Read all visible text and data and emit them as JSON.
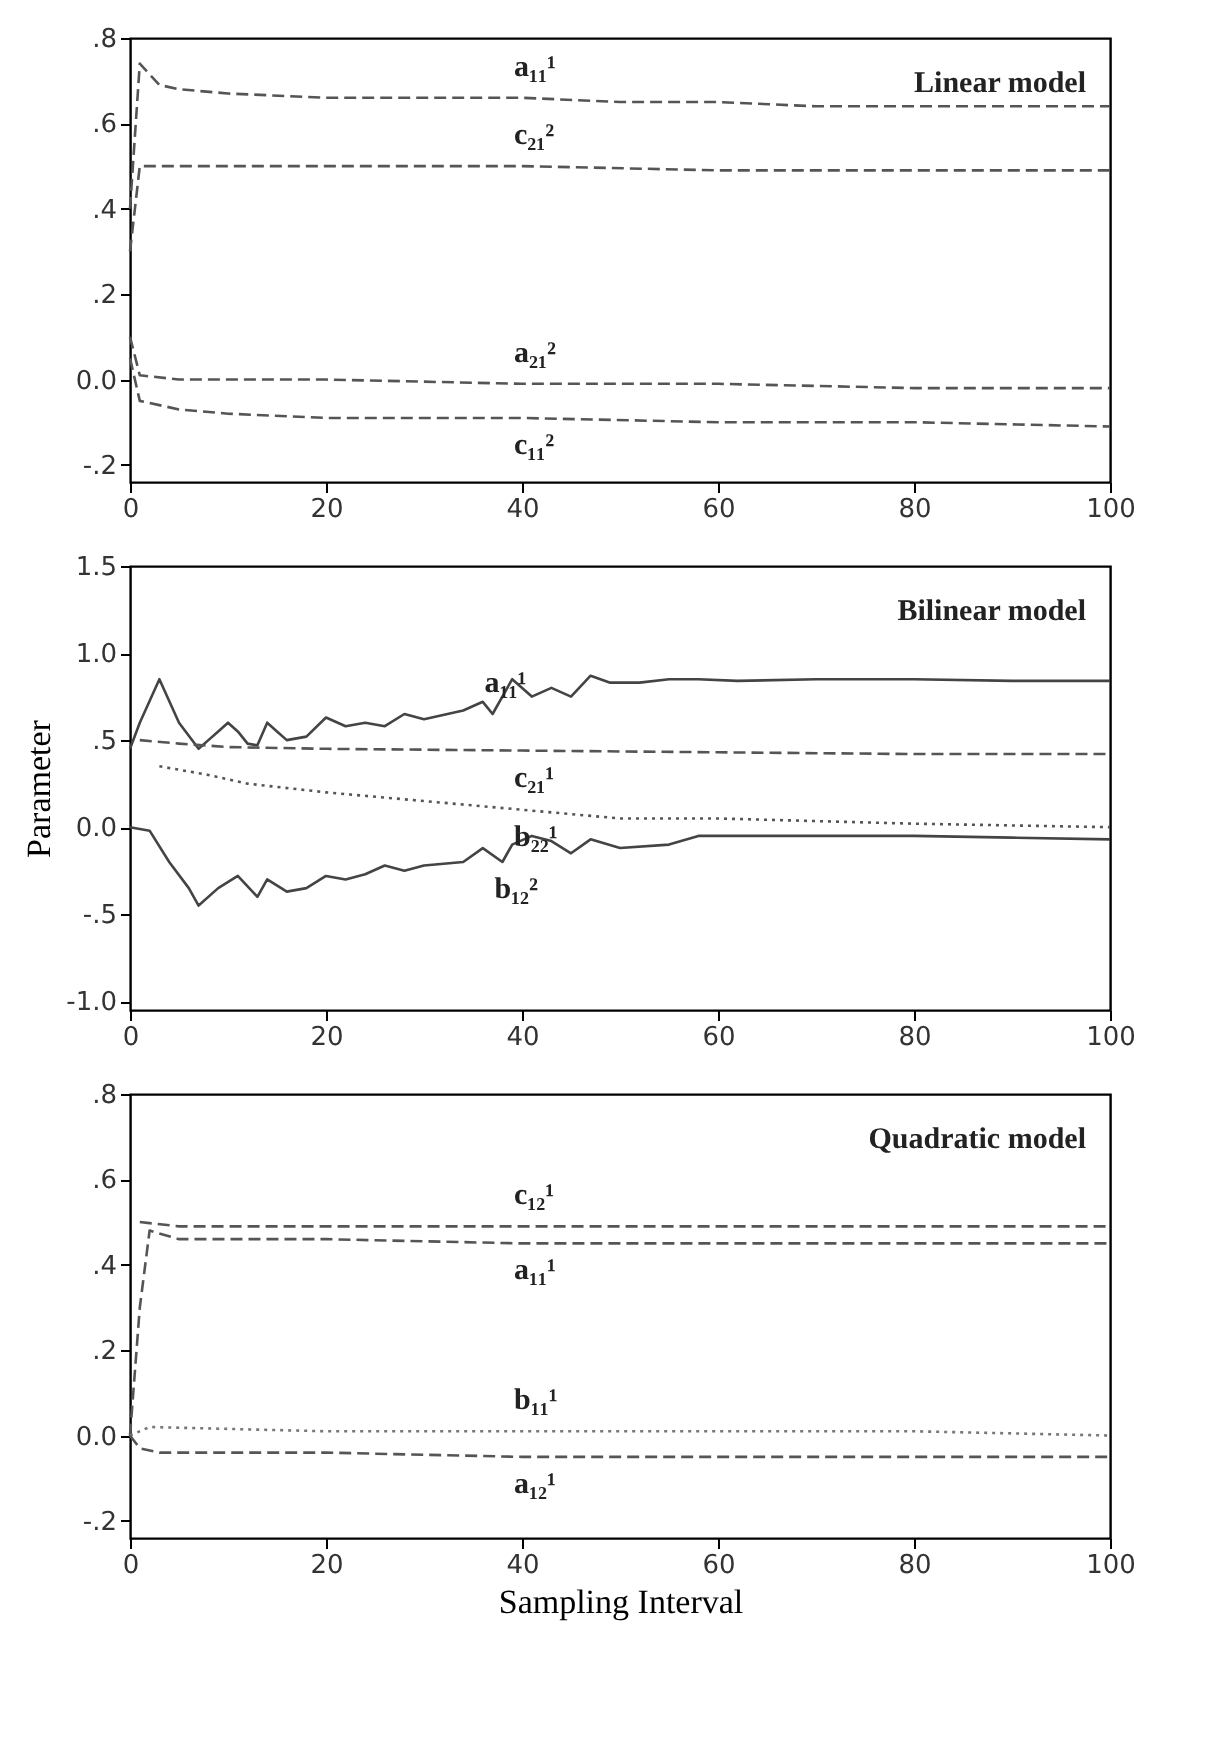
{
  "chart_data": [
    {
      "type": "line",
      "title": "Linear model",
      "xlim": [
        0,
        100
      ],
      "xticks": [
        0,
        20,
        40,
        60,
        80,
        100
      ],
      "ylim": [
        -0.24,
        0.8
      ],
      "yticks": [
        {
          "value": -0.2,
          "label": "-.2"
        },
        {
          "value": 0,
          "label": "0.0"
        },
        {
          "value": 0.2,
          "label": ".2"
        },
        {
          "value": 0.4,
          "label": ".4"
        },
        {
          "value": 0.6,
          "label": ".6"
        },
        {
          "value": 0.8,
          "label": ".8"
        }
      ],
      "grid": false,
      "marker": "none",
      "series": [
        {
          "name": "a₁₁¹",
          "color": "#555555",
          "line_style": "dashed",
          "x": [
            0,
            1,
            3,
            5,
            10,
            20,
            30,
            40,
            50,
            60,
            70,
            80,
            90,
            100
          ],
          "values": [
            0.4,
            0.74,
            0.69,
            0.68,
            0.67,
            0.66,
            0.66,
            0.66,
            0.65,
            0.65,
            0.64,
            0.64,
            0.64,
            0.64
          ]
        },
        {
          "name": "c₂₁²",
          "color": "#555555",
          "line_style": "dashed",
          "x": [
            0,
            1,
            5,
            20,
            40,
            60,
            80,
            100
          ],
          "values": [
            0.3,
            0.5,
            0.5,
            0.5,
            0.5,
            0.49,
            0.49,
            0.49
          ]
        },
        {
          "name": "a₂₁²",
          "color": "#555555",
          "line_style": "dashed",
          "x": [
            0,
            1,
            5,
            20,
            40,
            60,
            80,
            100
          ],
          "values": [
            0.1,
            0.01,
            0.0,
            0.0,
            -0.01,
            -0.01,
            -0.02,
            -0.02
          ]
        },
        {
          "name": "c₁₁²",
          "color": "#555555",
          "line_style": "dashed",
          "x": [
            0,
            1,
            5,
            10,
            20,
            40,
            60,
            80,
            100
          ],
          "values": [
            0.05,
            -0.05,
            -0.07,
            -0.08,
            -0.09,
            -0.09,
            -0.1,
            -0.1,
            -0.11
          ]
        }
      ]
    },
    {
      "type": "line",
      "title": "Bilinear model",
      "ylabel": "Parameter",
      "xlim": [
        0,
        100
      ],
      "xticks": [
        0,
        20,
        40,
        60,
        80,
        100
      ],
      "ylim": [
        -1.05,
        1.5
      ],
      "yticks": [
        {
          "value": -1,
          "label": "-1.0"
        },
        {
          "value": -0.5,
          "label": "-.5"
        },
        {
          "value": 0,
          "label": "0.0"
        },
        {
          "value": 0.5,
          "label": ".5"
        },
        {
          "value": 1,
          "label": "1.0"
        },
        {
          "value": 1.5,
          "label": "1.5"
        }
      ],
      "grid": false,
      "marker": "none",
      "series": [
        {
          "name": "a₁₁¹",
          "color": "#444444",
          "line_style": "solid",
          "x": [
            0,
            1,
            3,
            5,
            7,
            8,
            9,
            10,
            11,
            12,
            13,
            14,
            15,
            16,
            18,
            20,
            22,
            24,
            26,
            28,
            30,
            34,
            36,
            37,
            39,
            41,
            43,
            45,
            47,
            49,
            52,
            55,
            58,
            62,
            70,
            80,
            90,
            100
          ],
          "values": [
            0.45,
            0.6,
            0.85,
            0.6,
            0.45,
            0.5,
            0.55,
            0.6,
            0.55,
            0.48,
            0.47,
            0.6,
            0.55,
            0.5,
            0.52,
            0.63,
            0.58,
            0.6,
            0.58,
            0.65,
            0.62,
            0.67,
            0.72,
            0.65,
            0.85,
            0.75,
            0.8,
            0.75,
            0.87,
            0.83,
            0.83,
            0.85,
            0.85,
            0.84,
            0.85,
            0.85,
            0.84,
            0.84
          ]
        },
        {
          "name": "c₂₁¹",
          "color": "#555555",
          "line_style": "dashed",
          "x": [
            1,
            5,
            10,
            20,
            40,
            60,
            80,
            100
          ],
          "values": [
            0.5,
            0.48,
            0.46,
            0.45,
            0.44,
            0.43,
            0.42,
            0.42
          ]
        },
        {
          "name": "b₂₂¹",
          "color": "#555555",
          "line_style": "dotted",
          "x": [
            3,
            8,
            12,
            20,
            30,
            40,
            50,
            60,
            80,
            100
          ],
          "values": [
            0.35,
            0.3,
            0.25,
            0.2,
            0.15,
            0.1,
            0.05,
            0.05,
            0.02,
            0.0
          ]
        },
        {
          "name": "b₁₂²",
          "color": "#444444",
          "line_style": "solid",
          "x": [
            0,
            2,
            4,
            6,
            7,
            9,
            11,
            13,
            14,
            16,
            18,
            20,
            22,
            24,
            26,
            28,
            30,
            34,
            36,
            38,
            39,
            41,
            43,
            45,
            47,
            50,
            55,
            58,
            62,
            70,
            80,
            90,
            100
          ],
          "values": [
            0.0,
            -0.02,
            -0.2,
            -0.35,
            -0.45,
            -0.35,
            -0.28,
            -0.4,
            -0.3,
            -0.37,
            -0.35,
            -0.28,
            -0.3,
            -0.27,
            -0.22,
            -0.25,
            -0.22,
            -0.2,
            -0.12,
            -0.2,
            -0.1,
            -0.05,
            -0.08,
            -0.15,
            -0.07,
            -0.12,
            -0.1,
            -0.05,
            -0.05,
            -0.05,
            -0.05,
            -0.06,
            -0.07
          ]
        }
      ]
    },
    {
      "type": "line",
      "title": "Quadratic model",
      "xlabel": "Sampling Interval",
      "xlim": [
        0,
        100
      ],
      "xticks": [
        0,
        20,
        40,
        60,
        80,
        100
      ],
      "ylim": [
        -0.24,
        0.8
      ],
      "yticks": [
        {
          "value": -0.2,
          "label": "-.2"
        },
        {
          "value": 0,
          "label": "0.0"
        },
        {
          "value": 0.2,
          "label": ".2"
        },
        {
          "value": 0.4,
          "label": ".4"
        },
        {
          "value": 0.6,
          "label": ".6"
        },
        {
          "value": 0.8,
          "label": ".8"
        }
      ],
      "grid": false,
      "marker": "none",
      "series": [
        {
          "name": "c₁₂¹",
          "color": "#555555",
          "line_style": "dashed",
          "x": [
            1,
            5,
            20,
            40,
            60,
            80,
            100
          ],
          "values": [
            0.5,
            0.49,
            0.49,
            0.49,
            0.49,
            0.49,
            0.49
          ]
        },
        {
          "name": "a₁₁¹",
          "color": "#555555",
          "line_style": "dashed",
          "x": [
            0,
            1,
            2,
            5,
            20,
            40,
            60,
            80,
            100
          ],
          "values": [
            0.0,
            0.3,
            0.48,
            0.46,
            0.46,
            0.45,
            0.45,
            0.45,
            0.45
          ]
        },
        {
          "name": "b₁₁¹",
          "color": "#777777",
          "line_style": "dotted",
          "x": [
            0,
            2,
            20,
            40,
            50,
            60,
            80,
            100
          ],
          "values": [
            0.0,
            0.02,
            0.01,
            0.01,
            0.01,
            0.01,
            0.01,
            0.0
          ]
        },
        {
          "name": "a₁₂¹",
          "color": "#555555",
          "line_style": "dashed",
          "x": [
            0,
            1,
            3,
            20,
            40,
            60,
            80,
            100
          ],
          "values": [
            0.0,
            -0.03,
            -0.04,
            -0.04,
            -0.05,
            -0.05,
            -0.05,
            -0.05
          ]
        }
      ]
    }
  ]
}
